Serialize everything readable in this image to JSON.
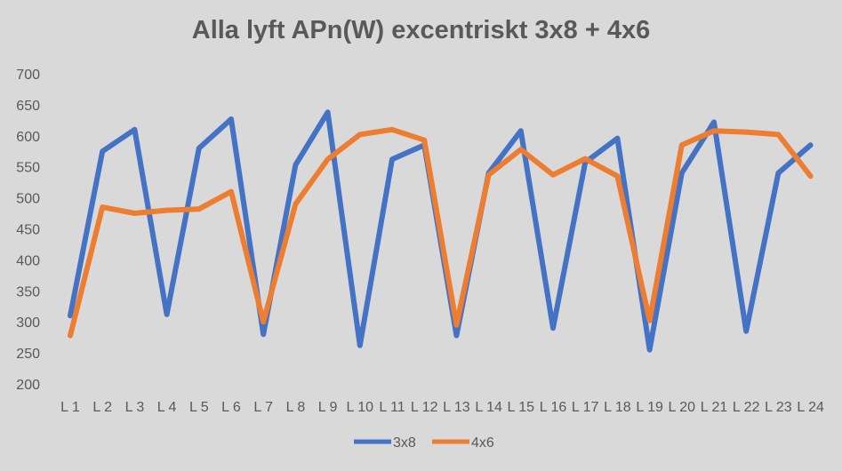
{
  "chart_data": {
    "type": "line",
    "title": "Alla lyft APn(W) excentriskt 3x8 + 4x6",
    "xlabel": "",
    "ylabel": "",
    "ylim": [
      200,
      700
    ],
    "yticks": [
      200,
      250,
      300,
      350,
      400,
      450,
      500,
      550,
      600,
      650,
      700
    ],
    "grid": false,
    "legend": "bottom-center",
    "categories": [
      "L 1",
      "L 2",
      "L 3",
      "L 4",
      "L 5",
      "L 6",
      "L 7",
      "L 8",
      "L 9",
      "L 10",
      "L 11",
      "L 12",
      "L 13",
      "L 14",
      "L 15",
      "L 16",
      "L 17",
      "L 18",
      "L 19",
      "L 20",
      "L 21",
      "L 22",
      "L 23",
      "L 24"
    ],
    "series": [
      {
        "name": "3x8",
        "color": "#4472c4",
        "values": [
          310,
          575,
          610,
          312,
          580,
          627,
          280,
          553,
          638,
          262,
          562,
          585,
          278,
          540,
          608,
          290,
          557,
          596,
          255,
          540,
          622,
          285,
          540,
          585
        ]
      },
      {
        "name": "4x6",
        "color": "#ed7d31",
        "values": [
          278,
          485,
          475,
          480,
          482,
          510,
          300,
          490,
          562,
          602,
          610,
          593,
          295,
          537,
          578,
          537,
          563,
          535,
          302,
          585,
          608,
          606,
          602,
          535
        ]
      }
    ]
  }
}
